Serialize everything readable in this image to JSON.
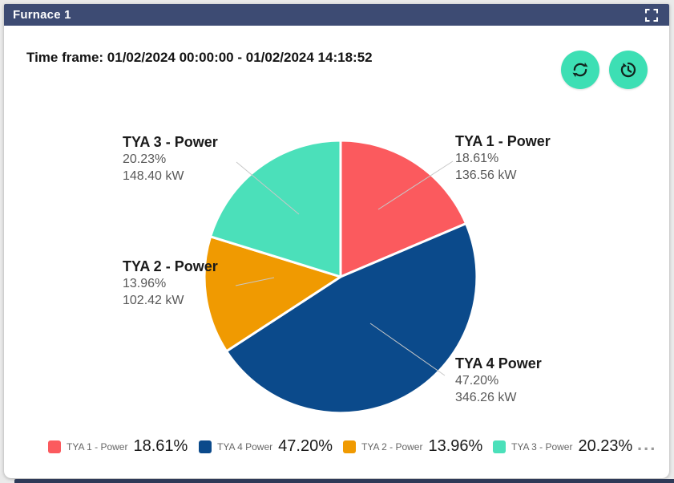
{
  "widget": {
    "title": "Furnace 1",
    "time_frame": "Time frame: 01/02/2024 00:00:00 - 01/02/2024 14:18:52"
  },
  "toolbar": {
    "buttons": [
      {
        "icon": "refresh-icon",
        "color": "#3ddfb4"
      },
      {
        "icon": "history-icon",
        "color": "#3ddfb4"
      }
    ],
    "header_icon": "fullscreen-icon"
  },
  "colors": {
    "header_bg": "#3d4b73",
    "page_bg": "#eaeaea",
    "bottom_strip": "#2e3a58",
    "pie_gap_stroke": "#ffffff",
    "leader_line": "#c8c8c8",
    "label_title": "#1a1a1a",
    "label_value": "#595959"
  },
  "chart_data": {
    "type": "pie",
    "title": "Furnace 1",
    "unit": "kW",
    "start_angle_deg": -90,
    "direction": "clockwise",
    "legend_position": "bottom",
    "series": [
      {
        "label": "TYA 1 - Power",
        "percent": 18.61,
        "value_kw": 136.56,
        "percent_text": "18.61%",
        "value_text": "136.56 kW",
        "color": "#fb5a5e"
      },
      {
        "label": "TYA 4 Power",
        "percent": 47.2,
        "value_kw": 346.26,
        "percent_text": "47.20%",
        "value_text": "346.26 kW",
        "color": "#0b4a8b"
      },
      {
        "label": "TYA 2 - Power",
        "percent": 13.96,
        "value_kw": 102.42,
        "percent_text": "13.96%",
        "value_text": "102.42 kW",
        "color": "#f09a01"
      },
      {
        "label": "TYA 3 - Power",
        "percent": 20.23,
        "value_kw": 148.4,
        "percent_text": "20.23%",
        "value_text": "148.40 kW",
        "color": "#4be0ba"
      }
    ]
  },
  "legend": {
    "overflow_indicator": "..."
  }
}
